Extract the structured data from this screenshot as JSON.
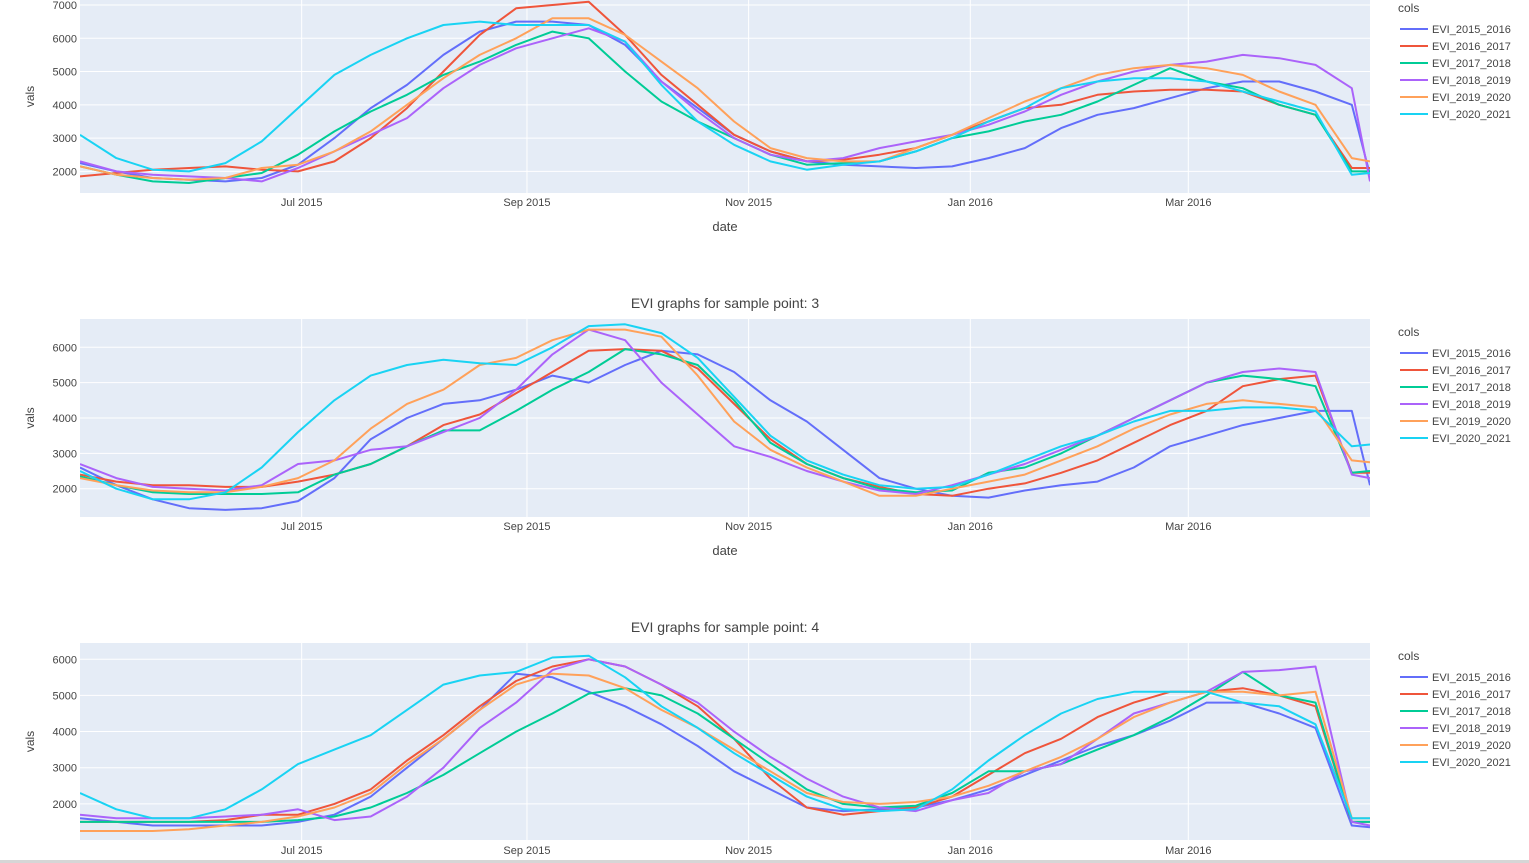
{
  "chart_data": [
    {
      "type": "line",
      "title": "",
      "xlabel": "date",
      "ylabel": "vals",
      "x_range": [
        "2015-05-01",
        "2016-04-20"
      ],
      "ylim": [
        1350,
        7150
      ],
      "xticks": [
        {
          "date": "2015-07-01",
          "label": "Jul 2015"
        },
        {
          "date": "2015-09-01",
          "label": "Sep 2015"
        },
        {
          "date": "2015-11-01",
          "label": "Nov 2015"
        },
        {
          "date": "2016-01-01",
          "label": "Jan 2016"
        },
        {
          "date": "2016-03-01",
          "label": "Mar 2016"
        }
      ],
      "yticks": [
        2000,
        3000,
        4000,
        5000,
        6000,
        7000
      ],
      "legend_title": "cols",
      "legend_position": "right",
      "grid": true,
      "x": [
        "2015-05-01",
        "2015-05-11",
        "2015-05-21",
        "2015-05-31",
        "2015-06-10",
        "2015-06-20",
        "2015-06-30",
        "2015-07-10",
        "2015-07-20",
        "2015-07-30",
        "2015-08-09",
        "2015-08-19",
        "2015-08-29",
        "2015-09-08",
        "2015-09-18",
        "2015-09-28",
        "2015-10-08",
        "2015-10-18",
        "2015-10-28",
        "2015-11-07",
        "2015-11-17",
        "2015-11-27",
        "2015-12-07",
        "2015-12-17",
        "2015-12-27",
        "2016-01-06",
        "2016-01-16",
        "2016-01-26",
        "2016-02-05",
        "2016-02-15",
        "2016-02-25",
        "2016-03-06",
        "2016-03-16",
        "2016-03-26",
        "2016-04-05",
        "2016-04-15",
        "2016-04-20"
      ],
      "series": [
        {
          "name": "EVI_2015_2016",
          "color": "#636efa",
          "values": [
            2250,
            2000,
            1800,
            1750,
            1700,
            1800,
            2200,
            3000,
            3900,
            4600,
            5500,
            6200,
            6500,
            6500,
            6400,
            5800,
            4700,
            3900,
            3100,
            2600,
            2300,
            2200,
            2150,
            2100,
            2150,
            2400,
            2700,
            3300,
            3700,
            3900,
            4200,
            4500,
            4700,
            4700,
            4400,
            4000,
            1900
          ]
        },
        {
          "name": "EVI_2016_2017",
          "color": "#ef553b",
          "values": [
            1850,
            1950,
            2050,
            2100,
            2150,
            2050,
            2000,
            2300,
            3000,
            3900,
            5000,
            6100,
            6900,
            7000,
            7100,
            6100,
            4900,
            4000,
            3100,
            2600,
            2300,
            2350,
            2500,
            2700,
            3100,
            3500,
            3900,
            4000,
            4300,
            4400,
            4450,
            4450,
            4400,
            4000,
            3700,
            2100,
            2100
          ]
        },
        {
          "name": "EVI_2017_2018",
          "color": "#00cc96",
          "values": [
            2150,
            1900,
            1700,
            1650,
            1800,
            1950,
            2500,
            3200,
            3800,
            4300,
            4900,
            5300,
            5800,
            6200,
            6000,
            5000,
            4100,
            3500,
            3000,
            2500,
            2200,
            2250,
            2300,
            2600,
            3000,
            3200,
            3500,
            3700,
            4100,
            4600,
            5100,
            4700,
            4500,
            4000,
            3700,
            2000,
            2000
          ]
        },
        {
          "name": "EVI_2018_2019",
          "color": "#ab63fa",
          "values": [
            2300,
            2000,
            1900,
            1850,
            1800,
            1700,
            2100,
            2600,
            3100,
            3600,
            4500,
            5200,
            5700,
            6000,
            6300,
            5900,
            4700,
            3800,
            3000,
            2500,
            2300,
            2400,
            2700,
            2900,
            3100,
            3400,
            3800,
            4300,
            4700,
            5000,
            5200,
            5300,
            5500,
            5400,
            5200,
            4500,
            1700
          ]
        },
        {
          "name": "EVI_2019_2020",
          "color": "#ffa15a",
          "values": [
            2150,
            1900,
            1800,
            1750,
            1800,
            2100,
            2200,
            2600,
            3200,
            4000,
            4800,
            5500,
            6000,
            6600,
            6600,
            6100,
            5300,
            4500,
            3500,
            2700,
            2400,
            2300,
            2300,
            2700,
            3100,
            3600,
            4100,
            4500,
            4900,
            5100,
            5200,
            5100,
            4900,
            4400,
            4000,
            2400,
            2300
          ]
        },
        {
          "name": "EVI_2020_2021",
          "color": "#19d3f3",
          "values": [
            3100,
            2400,
            2050,
            2000,
            2250,
            2900,
            3900,
            4900,
            5500,
            6000,
            6400,
            6500,
            6400,
            6400,
            6400,
            5900,
            4600,
            3500,
            2800,
            2300,
            2050,
            2200,
            2300,
            2600,
            3000,
            3500,
            3900,
            4500,
            4700,
            4800,
            4800,
            4700,
            4400,
            4100,
            3800,
            1900,
            1950
          ]
        }
      ]
    },
    {
      "type": "line",
      "title": "EVI graphs for sample point: 3",
      "xlabel": "date",
      "ylabel": "vals",
      "x_range": [
        "2015-05-01",
        "2016-04-20"
      ],
      "ylim": [
        1200,
        6800
      ],
      "xticks": [
        {
          "date": "2015-07-01",
          "label": "Jul 2015"
        },
        {
          "date": "2015-09-01",
          "label": "Sep 2015"
        },
        {
          "date": "2015-11-01",
          "label": "Nov 2015"
        },
        {
          "date": "2016-01-01",
          "label": "Jan 2016"
        },
        {
          "date": "2016-03-01",
          "label": "Mar 2016"
        }
      ],
      "yticks": [
        2000,
        3000,
        4000,
        5000,
        6000
      ],
      "legend_title": "cols",
      "legend_position": "right",
      "grid": true,
      "x": [
        "2015-05-01",
        "2015-05-11",
        "2015-05-21",
        "2015-05-31",
        "2015-06-10",
        "2015-06-20",
        "2015-06-30",
        "2015-07-10",
        "2015-07-20",
        "2015-07-30",
        "2015-08-09",
        "2015-08-19",
        "2015-08-29",
        "2015-09-08",
        "2015-09-18",
        "2015-09-28",
        "2015-10-08",
        "2015-10-18",
        "2015-10-28",
        "2015-11-07",
        "2015-11-17",
        "2015-11-27",
        "2015-12-07",
        "2015-12-17",
        "2015-12-27",
        "2016-01-06",
        "2016-01-16",
        "2016-01-26",
        "2016-02-05",
        "2016-02-15",
        "2016-02-25",
        "2016-03-06",
        "2016-03-16",
        "2016-03-26",
        "2016-04-05",
        "2016-04-15",
        "2016-04-20"
      ],
      "series": [
        {
          "name": "EVI_2015_2016",
          "color": "#636efa",
          "values": [
            2600,
            2100,
            1700,
            1450,
            1400,
            1450,
            1650,
            2300,
            3400,
            4000,
            4400,
            4500,
            4800,
            5200,
            5000,
            5500,
            5900,
            5800,
            5300,
            4500,
            3900,
            3100,
            2300,
            2000,
            1800,
            1750,
            1950,
            2100,
            2200,
            2600,
            3200,
            3500,
            3800,
            4000,
            4200,
            4200,
            2100
          ]
        },
        {
          "name": "EVI_2016_2017",
          "color": "#ef553b",
          "values": [
            2400,
            2200,
            2100,
            2100,
            2050,
            2050,
            2200,
            2400,
            2700,
            3200,
            3800,
            4100,
            4700,
            5300,
            5900,
            5950,
            5900,
            5400,
            4400,
            3400,
            2700,
            2300,
            2050,
            1850,
            1800,
            2000,
            2150,
            2450,
            2800,
            3300,
            3800,
            4200,
            4900,
            5100,
            5200,
            2450,
            2450
          ]
        },
        {
          "name": "EVI_2017_2018",
          "color": "#00cc96",
          "values": [
            2350,
            2100,
            1900,
            1850,
            1850,
            1850,
            1900,
            2400,
            2700,
            3200,
            3650,
            3650,
            4200,
            4800,
            5300,
            5950,
            5800,
            5500,
            4500,
            3300,
            2700,
            2300,
            2000,
            1900,
            1950,
            2450,
            2600,
            3000,
            3500,
            4000,
            4500,
            5000,
            5200,
            5100,
            4900,
            2450,
            2500
          ]
        },
        {
          "name": "EVI_2018_2019",
          "color": "#ab63fa",
          "values": [
            2700,
            2300,
            2050,
            2000,
            1950,
            2100,
            2700,
            2800,
            3100,
            3200,
            3600,
            4000,
            4800,
            5800,
            6500,
            6200,
            5000,
            4100,
            3200,
            2900,
            2500,
            2200,
            1950,
            1850,
            2100,
            2400,
            2700,
            3100,
            3500,
            4000,
            4500,
            5000,
            5300,
            5400,
            5300,
            2400,
            2300
          ]
        },
        {
          "name": "EVI_2019_2020",
          "color": "#ffa15a",
          "values": [
            2300,
            2100,
            1950,
            1900,
            1900,
            2050,
            2300,
            2800,
            3700,
            4400,
            4800,
            5500,
            5700,
            6200,
            6500,
            6500,
            6300,
            5200,
            3900,
            3100,
            2600,
            2200,
            1800,
            1800,
            2000,
            2200,
            2400,
            2800,
            3200,
            3700,
            4100,
            4400,
            4500,
            4400,
            4300,
            2800,
            2750
          ]
        },
        {
          "name": "EVI_2020_2021",
          "color": "#19d3f3",
          "values": [
            2500,
            2000,
            1700,
            1700,
            1900,
            2600,
            3600,
            4500,
            5200,
            5500,
            5650,
            5550,
            5500,
            6000,
            6600,
            6650,
            6400,
            5700,
            4600,
            3500,
            2800,
            2400,
            2100,
            2000,
            2050,
            2400,
            2800,
            3200,
            3500,
            3900,
            4200,
            4200,
            4300,
            4300,
            4200,
            3200,
            3250
          ]
        }
      ]
    },
    {
      "type": "line",
      "title": "EVI graphs for sample point: 4",
      "xlabel": "",
      "ylabel": "vals",
      "x_range": [
        "2015-05-01",
        "2016-04-20"
      ],
      "ylim": [
        1000,
        6450
      ],
      "xticks": [
        {
          "date": "2015-07-01",
          "label": "Jul 2015"
        },
        {
          "date": "2015-09-01",
          "label": "Sep 2015"
        },
        {
          "date": "2015-11-01",
          "label": "Nov 2015"
        },
        {
          "date": "2016-01-01",
          "label": "Jan 2016"
        },
        {
          "date": "2016-03-01",
          "label": "Mar 2016"
        }
      ],
      "yticks": [
        2000,
        3000,
        4000,
        5000,
        6000
      ],
      "legend_title": "cols",
      "legend_position": "right",
      "grid": true,
      "x": [
        "2015-05-01",
        "2015-05-11",
        "2015-05-21",
        "2015-05-31",
        "2015-06-10",
        "2015-06-20",
        "2015-06-30",
        "2015-07-10",
        "2015-07-20",
        "2015-07-30",
        "2015-08-09",
        "2015-08-19",
        "2015-08-29",
        "2015-09-08",
        "2015-09-18",
        "2015-09-28",
        "2015-10-08",
        "2015-10-18",
        "2015-10-28",
        "2015-11-07",
        "2015-11-17",
        "2015-11-27",
        "2015-12-07",
        "2015-12-17",
        "2015-12-27",
        "2016-01-06",
        "2016-01-16",
        "2016-01-26",
        "2016-02-05",
        "2016-02-15",
        "2016-02-25",
        "2016-03-06",
        "2016-03-16",
        "2016-03-26",
        "2016-04-05",
        "2016-04-15",
        "2016-04-20"
      ],
      "series": [
        {
          "name": "EVI_2015_2016",
          "color": "#636efa",
          "values": [
            1600,
            1500,
            1400,
            1400,
            1400,
            1400,
            1500,
            1700,
            2200,
            3000,
            3800,
            4600,
            5600,
            5500,
            5100,
            4700,
            4200,
            3600,
            2900,
            2400,
            1900,
            1800,
            1850,
            1900,
            2100,
            2400,
            2800,
            3200,
            3600,
            3900,
            4300,
            4800,
            4800,
            4500,
            4100,
            1400,
            1350
          ]
        },
        {
          "name": "EVI_2016_2017",
          "color": "#ef553b",
          "values": [
            1500,
            1500,
            1500,
            1500,
            1550,
            1700,
            1700,
            2000,
            2400,
            3200,
            3900,
            4700,
            5400,
            5800,
            6000,
            5800,
            5300,
            4700,
            3800,
            2700,
            1900,
            1700,
            1800,
            1900,
            2200,
            2800,
            3400,
            3800,
            4400,
            4800,
            5100,
            5100,
            5200,
            5000,
            4700,
            1500,
            1500
          ]
        },
        {
          "name": "EVI_2017_2018",
          "color": "#00cc96",
          "values": [
            1500,
            1500,
            1500,
            1500,
            1500,
            1500,
            1550,
            1650,
            1900,
            2300,
            2800,
            3400,
            4000,
            4500,
            5050,
            5200,
            5000,
            4500,
            3800,
            3100,
            2400,
            2000,
            1900,
            1950,
            2300,
            2900,
            2900,
            3100,
            3500,
            3900,
            4400,
            5000,
            5650,
            5000,
            4800,
            1500,
            1500
          ]
        },
        {
          "name": "EVI_2018_2019",
          "color": "#ab63fa",
          "values": [
            1700,
            1600,
            1600,
            1600,
            1650,
            1700,
            1850,
            1550,
            1650,
            2200,
            3000,
            4100,
            4800,
            5700,
            6000,
            5800,
            5300,
            4800,
            4000,
            3300,
            2700,
            2200,
            1900,
            1800,
            2100,
            2300,
            2900,
            3100,
            3800,
            4500,
            4800,
            5100,
            5650,
            5700,
            5800,
            1500,
            1400
          ]
        },
        {
          "name": "EVI_2019_2020",
          "color": "#ffa15a",
          "values": [
            1250,
            1250,
            1250,
            1300,
            1400,
            1500,
            1650,
            1900,
            2300,
            3100,
            3800,
            4600,
            5300,
            5600,
            5550,
            5200,
            4600,
            4100,
            3500,
            2900,
            2300,
            2050,
            2000,
            2050,
            2200,
            2500,
            2900,
            3300,
            3800,
            4400,
            4800,
            5100,
            5100,
            5000,
            5100,
            1600,
            1600
          ]
        },
        {
          "name": "EVI_2020_2021",
          "color": "#19d3f3",
          "values": [
            2300,
            1850,
            1600,
            1600,
            1850,
            2400,
            3100,
            3500,
            3900,
            4600,
            5300,
            5550,
            5650,
            6050,
            6100,
            5500,
            4700,
            4100,
            3400,
            2800,
            2200,
            1850,
            1800,
            1850,
            2400,
            3200,
            3900,
            4500,
            4900,
            5100,
            5100,
            5100,
            4800,
            4700,
            4200,
            1600,
            1600
          ]
        }
      ]
    }
  ]
}
